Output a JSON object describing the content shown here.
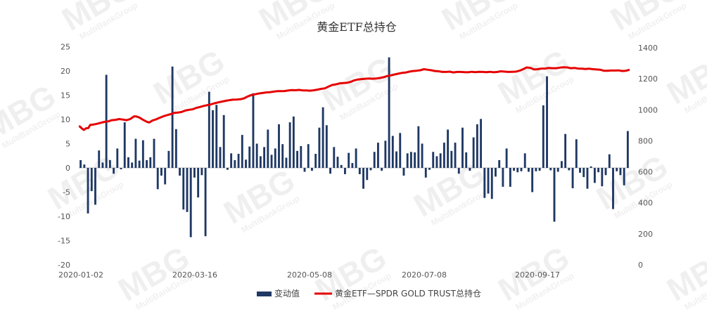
{
  "watermark": {
    "brand": "MBG",
    "sub": "MultiBankGroup"
  },
  "chart_data": {
    "type": "bar+line",
    "title": "黄金ETF总持仓",
    "x_tick_labels": [
      "2020-01-02",
      "2020-03-16",
      "2020-05-08",
      "2020-07-08",
      "2020-09-17"
    ],
    "y_left": {
      "ticks": [
        25,
        20,
        15,
        10,
        5,
        0,
        -5,
        -10,
        -15,
        -20
      ],
      "lim": [
        -20,
        25
      ]
    },
    "y_right": {
      "ticks": [
        1400,
        1200,
        1000,
        800,
        600,
        400,
        200,
        0
      ],
      "lim": [
        0,
        1400
      ]
    },
    "legend_position": "bottom",
    "colors": {
      "bar": "#1f3864",
      "line": "#e60000"
    },
    "series": [
      {
        "name": "变动值",
        "kind": "bar",
        "axis": "left",
        "values": [
          1.6,
          0.7,
          -9.4,
          -4.8,
          -7.6,
          3.6,
          1.1,
          19.2,
          1.6,
          -1.2,
          4.0,
          -0.3,
          9.4,
          2.2,
          1.1,
          6.0,
          1.5,
          5.7,
          1.6,
          2.2,
          6.0,
          -4.4,
          -1.6,
          -3.4,
          3.5,
          20.9,
          8.0,
          -1.6,
          -8.6,
          -9.1,
          -14.3,
          -2.0,
          -6.1,
          -1.5,
          -14.1,
          15.7,
          11.9,
          13.0,
          4.3,
          10.9,
          -0.4,
          3.0,
          1.6,
          2.9,
          6.8,
          1.7,
          4.4,
          15.4,
          5.0,
          2.4,
          4.3,
          7.9,
          2.7,
          4.0,
          9.0,
          4.9,
          2.1,
          9.4,
          10.6,
          3.5,
          4.5,
          -0.8,
          4.9,
          -0.6,
          2.9,
          8.3,
          12.5,
          8.8,
          -1.2,
          4.3,
          2.3,
          0.6,
          -1.3,
          3.1,
          1.0,
          4.0,
          -1.3,
          -4.3,
          -2.5,
          -0.5,
          3.3,
          5.2,
          -0.6,
          5.6,
          22.8,
          6.6,
          3.4,
          7.2,
          -1.6,
          3.0,
          3.3,
          3.2,
          8.6,
          5.0,
          -2.0,
          -0.4,
          3.3,
          2.4,
          3.0,
          5.2,
          7.9,
          3.5,
          5.2,
          -1.2,
          8.3,
          3.2,
          -0.6,
          6.3,
          9.0,
          10.1,
          -6.2,
          -5.3,
          -6.4,
          -1.8,
          1.6,
          -3.9,
          4.0,
          -3.9,
          -0.6,
          -0.9,
          -0.7,
          3.0,
          -0.8,
          -5.0,
          -0.7,
          -0.6,
          12.9,
          18.9,
          -0.5,
          -11.1,
          -0.8,
          1.4,
          7.0,
          -0.5,
          -4.2,
          5.9,
          -1.0,
          -1.9,
          -4.3,
          0.3,
          -3.1,
          -0.9,
          -3.8,
          -1.5,
          2.8,
          -8.5,
          -0.7,
          -1.5,
          -3.6,
          7.6
        ]
      },
      {
        "name": "黄金ETF—SPDR GOLD TRUST总持仓",
        "kind": "line",
        "axis": "right",
        "points": [
          [
            0,
            893
          ],
          [
            3,
            892
          ],
          [
            8,
            880
          ],
          [
            14,
            870
          ],
          [
            20,
            881
          ],
          [
            26,
            882
          ],
          [
            31,
            902
          ],
          [
            40,
            905
          ],
          [
            50,
            910
          ],
          [
            60,
            916
          ],
          [
            70,
            922
          ],
          [
            80,
            925
          ],
          [
            90,
            933
          ],
          [
            100,
            935
          ],
          [
            110,
            940
          ],
          [
            120,
            937
          ],
          [
            130,
            933
          ],
          [
            140,
            940
          ],
          [
            150,
            957
          ],
          [
            155,
            958
          ],
          [
            165,
            950
          ],
          [
            175,
            935
          ],
          [
            185,
            923
          ],
          [
            192,
            918
          ],
          [
            200,
            930
          ],
          [
            210,
            938
          ],
          [
            220,
            948
          ],
          [
            230,
            958
          ],
          [
            240,
            965
          ],
          [
            250,
            972
          ],
          [
            260,
            980
          ],
          [
            270,
            982
          ],
          [
            280,
            986
          ],
          [
            290,
            995
          ],
          [
            300,
            1000
          ],
          [
            310,
            1003
          ],
          [
            320,
            1012
          ],
          [
            330,
            1018
          ],
          [
            340,
            1025
          ],
          [
            350,
            1030
          ],
          [
            360,
            1035
          ],
          [
            370,
            1042
          ],
          [
            380,
            1048
          ],
          [
            390,
            1053
          ],
          [
            400,
            1058
          ],
          [
            410,
            1062
          ],
          [
            420,
            1065
          ],
          [
            430,
            1066
          ],
          [
            440,
            1068
          ],
          [
            450,
            1074
          ],
          [
            460,
            1086
          ],
          [
            470,
            1095
          ],
          [
            480,
            1100
          ],
          [
            490,
            1105
          ],
          [
            500,
            1108
          ],
          [
            510,
            1112
          ],
          [
            520,
            1113
          ],
          [
            530,
            1117
          ],
          [
            540,
            1120
          ],
          [
            550,
            1120
          ],
          [
            560,
            1121
          ],
          [
            570,
            1124
          ],
          [
            580,
            1127
          ],
          [
            590,
            1126
          ],
          [
            600,
            1128
          ],
          [
            610,
            1125
          ],
          [
            620,
            1125
          ],
          [
            630,
            1123
          ],
          [
            640,
            1126
          ],
          [
            650,
            1130
          ],
          [
            660,
            1135
          ],
          [
            670,
            1138
          ],
          [
            680,
            1150
          ],
          [
            690,
            1160
          ],
          [
            700,
            1164
          ],
          [
            710,
            1170
          ],
          [
            720,
            1172
          ],
          [
            730,
            1174
          ],
          [
            740,
            1180
          ],
          [
            750,
            1190
          ],
          [
            760,
            1195
          ],
          [
            770,
            1198
          ],
          [
            780,
            1200
          ],
          [
            790,
            1202
          ],
          [
            800,
            1200
          ],
          [
            810,
            1202
          ],
          [
            820,
            1205
          ],
          [
            830,
            1210
          ],
          [
            840,
            1218
          ],
          [
            850,
            1222
          ],
          [
            860,
            1228
          ],
          [
            870,
            1233
          ],
          [
            880,
            1238
          ],
          [
            890,
            1240
          ],
          [
            900,
            1246
          ],
          [
            910,
            1250
          ],
          [
            920,
            1252
          ],
          [
            930,
            1255
          ],
          [
            940,
            1262
          ],
          [
            950,
            1258
          ],
          [
            960,
            1255
          ],
          [
            970,
            1250
          ],
          [
            980,
            1248
          ],
          [
            990,
            1244
          ],
          [
            1000,
            1244
          ],
          [
            1010,
            1246
          ],
          [
            1020,
            1241
          ],
          [
            1030,
            1244
          ],
          [
            1040,
            1244
          ],
          [
            1050,
            1243
          ],
          [
            1060,
            1242
          ],
          [
            1070,
            1245
          ],
          [
            1080,
            1243
          ],
          [
            1090,
            1245
          ],
          [
            1100,
            1244
          ],
          [
            1110,
            1243
          ],
          [
            1120,
            1245
          ],
          [
            1130,
            1242
          ],
          [
            1140,
            1244
          ],
          [
            1150,
            1248
          ],
          [
            1160,
            1246
          ],
          [
            1170,
            1244
          ],
          [
            1180,
            1245
          ],
          [
            1190,
            1246
          ],
          [
            1200,
            1252
          ],
          [
            1210,
            1262
          ],
          [
            1220,
            1273
          ],
          [
            1230,
            1270
          ],
          [
            1240,
            1260
          ],
          [
            1250,
            1262
          ],
          [
            1260,
            1266
          ],
          [
            1270,
            1266
          ],
          [
            1280,
            1270
          ],
          [
            1290,
            1268
          ],
          [
            1300,
            1268
          ],
          [
            1310,
            1272
          ],
          [
            1320,
            1274
          ],
          [
            1330,
            1273
          ],
          [
            1340,
            1268
          ],
          [
            1350,
            1270
          ],
          [
            1360,
            1266
          ],
          [
            1370,
            1265
          ],
          [
            1380,
            1263
          ],
          [
            1390,
            1265
          ],
          [
            1400,
            1262
          ],
          [
            1410,
            1260
          ],
          [
            1420,
            1258
          ],
          [
            1430,
            1252
          ],
          [
            1440,
            1252
          ],
          [
            1450,
            1253
          ],
          [
            1460,
            1253
          ],
          [
            1470,
            1254
          ],
          [
            1480,
            1250
          ],
          [
            1490,
            1252
          ],
          [
            1500,
            1258
          ]
        ]
      }
    ]
  }
}
